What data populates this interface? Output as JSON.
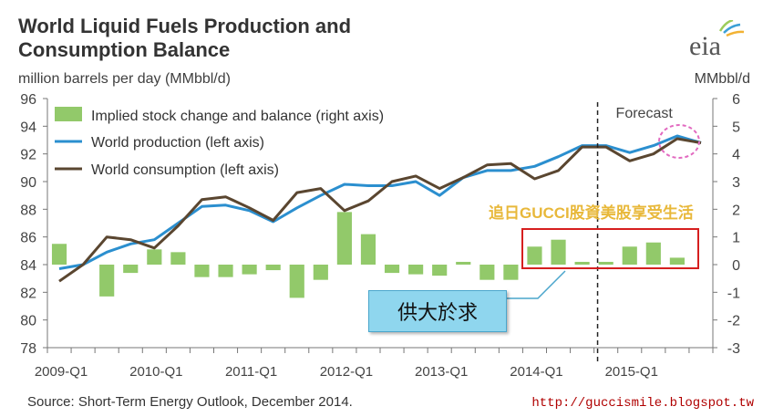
{
  "title_line1": "World Liquid Fuels Production and",
  "title_line2": "Consumption Balance",
  "left_unit": "million barrels per day (MMbbl/d)",
  "right_unit": "MMbbl/d",
  "logo_text": "eia",
  "forecast_label": "Forecast",
  "source": "Source: Short-Term Energy Outlook, December 2014.",
  "watermark": "追日GUCCI股資美股享受生活",
  "url": "http://guccismile.blogspot.tw",
  "callout": "供大於求",
  "colors": {
    "bar": "#92c96a",
    "production": "#2b8fcf",
    "consumption": "#5a4630",
    "highlight": "#d61f1f",
    "circle": "#e26ac0",
    "callout": "#8fd6ee"
  },
  "chart_data": {
    "type": "bar",
    "quarters": [
      "2009-Q1",
      "2009-Q2",
      "2009-Q3",
      "2009-Q4",
      "2010-Q1",
      "2010-Q2",
      "2010-Q3",
      "2010-Q4",
      "2011-Q1",
      "2011-Q2",
      "2011-Q3",
      "2011-Q4",
      "2012-Q1",
      "2012-Q2",
      "2012-Q3",
      "2012-Q4",
      "2013-Q1",
      "2013-Q2",
      "2013-Q3",
      "2013-Q4",
      "2014-Q1",
      "2014-Q2",
      "2014-Q3",
      "2014-Q4",
      "2015-Q1",
      "2015-Q2",
      "2015-Q3",
      "2015-Q4"
    ],
    "x_tick_labels": [
      "2009-Q1",
      "2010-Q1",
      "2011-Q1",
      "2012-Q1",
      "2013-Q1",
      "2014-Q1",
      "2015-Q1"
    ],
    "forecast_start": "2014-Q4",
    "left_axis": {
      "min": 78,
      "max": 96,
      "ticks": [
        78,
        80,
        82,
        84,
        86,
        88,
        90,
        92,
        94,
        96
      ]
    },
    "right_axis": {
      "min": -3,
      "max": 6,
      "ticks": [
        -3,
        -2,
        -1,
        0,
        1,
        2,
        3,
        4,
        5,
        6
      ]
    },
    "series": [
      {
        "name": "Implied stock change and balance (right axis)",
        "kind": "bar",
        "axis": "right",
        "values": [
          0.75,
          0,
          -1.15,
          -0.3,
          0.55,
          0.45,
          -0.45,
          -0.45,
          -0.35,
          -0.2,
          -1.2,
          -0.55,
          1.9,
          1.1,
          -0.3,
          -0.35,
          -0.4,
          0.1,
          -0.55,
          -0.55,
          0.65,
          0.9,
          0.1,
          0.1,
          0.65,
          0.8,
          0.25,
          0
        ]
      },
      {
        "name": "World production (left axis)",
        "kind": "line",
        "axis": "left",
        "values": [
          83.7,
          84,
          84.9,
          85.5,
          85.8,
          87,
          88.2,
          88.3,
          87.9,
          87.1,
          88.1,
          89,
          89.8,
          89.7,
          89.7,
          90,
          89,
          90.3,
          90.8,
          90.8,
          91.1,
          91.8,
          92.6,
          92.6,
          92.1,
          92.6,
          93.3,
          92.8
        ]
      },
      {
        "name": "World consumption (left axis)",
        "kind": "line",
        "axis": "left",
        "values": [
          82.8,
          84,
          86,
          85.8,
          85.2,
          86.8,
          88.7,
          88.9,
          88.1,
          87.2,
          89.2,
          89.5,
          87.9,
          88.6,
          90,
          90.4,
          89.5,
          90.3,
          91.2,
          91.3,
          90.2,
          90.8,
          92.5,
          92.5,
          91.5,
          92,
          93.1,
          92.8
        ]
      }
    ],
    "xlabel": "",
    "grid": false,
    "legend_placement": "top-left"
  }
}
